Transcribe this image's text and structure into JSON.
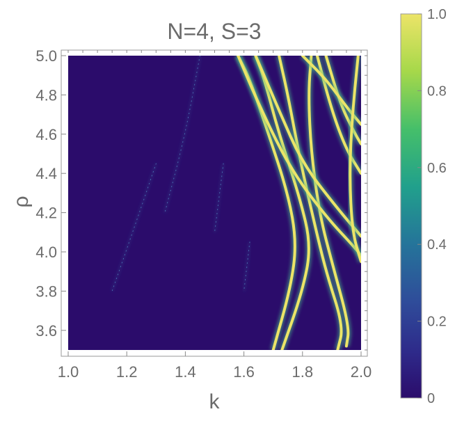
{
  "chart_data": {
    "type": "heatmap",
    "title": "N=4, S=3",
    "xlabel": "k",
    "ylabel": "ρ",
    "xlim": [
      1.0,
      2.0
    ],
    "ylim": [
      3.5,
      5.0
    ],
    "xticks": [
      "1.0",
      "1.2",
      "1.4",
      "1.6",
      "1.8",
      "2.0"
    ],
    "yticks": [
      "3.6",
      "3.8",
      "4.0",
      "4.2",
      "4.4",
      "4.6",
      "4.8",
      "5.0"
    ],
    "colorbar": {
      "range": [
        0,
        1
      ],
      "ticks": [
        "0",
        "0.2",
        "0.4",
        "0.6",
        "0.8",
        "1.0"
      ],
      "colormap": "viridis"
    },
    "background_color": "#2b0c6b",
    "resonance_curves": [
      {
        "points": [
          [
            1.7,
            3.5
          ],
          [
            1.76,
            3.82
          ],
          [
            1.78,
            4.05
          ],
          [
            1.75,
            4.3
          ],
          [
            1.68,
            4.62
          ],
          [
            1.62,
            4.88
          ],
          [
            1.58,
            5.0
          ]
        ],
        "intensity": 1.0
      },
      {
        "points": [
          [
            1.73,
            3.5
          ],
          [
            1.8,
            3.8
          ],
          [
            1.83,
            4.03
          ],
          [
            1.79,
            4.28
          ],
          [
            1.72,
            4.6
          ],
          [
            1.67,
            4.88
          ],
          [
            1.64,
            5.0
          ]
        ],
        "intensity": 1.0
      },
      {
        "points": [
          [
            1.92,
            3.5
          ],
          [
            1.94,
            3.62
          ],
          [
            1.88,
            3.9
          ],
          [
            1.84,
            4.15
          ],
          [
            1.79,
            4.48
          ],
          [
            1.75,
            4.8
          ],
          [
            1.72,
            5.0
          ]
        ],
        "intensity": 0.9
      },
      {
        "points": [
          [
            1.95,
            3.52
          ],
          [
            1.96,
            3.62
          ],
          [
            1.9,
            3.95
          ],
          [
            1.86,
            4.18
          ],
          [
            1.83,
            4.5
          ],
          [
            1.82,
            4.8
          ],
          [
            1.83,
            5.0
          ]
        ],
        "intensity": 0.9
      },
      {
        "points": [
          [
            1.58,
            5.0
          ],
          [
            1.66,
            4.72
          ],
          [
            1.76,
            4.42
          ],
          [
            1.88,
            4.18
          ],
          [
            1.98,
            4.02
          ],
          [
            2.0,
            3.98
          ]
        ],
        "intensity": 1.0
      },
      {
        "points": [
          [
            1.64,
            5.0
          ],
          [
            1.72,
            4.72
          ],
          [
            1.8,
            4.45
          ],
          [
            1.92,
            4.22
          ],
          [
            2.0,
            4.08
          ]
        ],
        "intensity": 1.0
      },
      {
        "points": [
          [
            1.85,
            5.0
          ],
          [
            1.9,
            4.72
          ],
          [
            1.95,
            4.52
          ],
          [
            2.0,
            4.4
          ]
        ],
        "intensity": 0.9
      },
      {
        "points": [
          [
            1.88,
            5.0
          ],
          [
            1.93,
            4.75
          ],
          [
            1.98,
            4.6
          ],
          [
            2.0,
            4.55
          ]
        ],
        "intensity": 0.9
      },
      {
        "points": [
          [
            1.8,
            5.0
          ],
          [
            1.88,
            4.88
          ],
          [
            1.96,
            4.72
          ],
          [
            2.0,
            4.65
          ]
        ],
        "intensity": 0.9
      },
      {
        "points": [
          [
            1.99,
            5.0
          ],
          [
            1.97,
            4.7
          ],
          [
            1.96,
            4.4
          ],
          [
            1.97,
            4.1
          ],
          [
            2.0,
            3.95
          ]
        ],
        "intensity": 0.8
      },
      {
        "points": [
          [
            1.45,
            5.0
          ],
          [
            1.4,
            4.6
          ],
          [
            1.33,
            4.2
          ]
        ],
        "intensity": 0.25
      },
      {
        "points": [
          [
            1.3,
            4.45
          ],
          [
            1.22,
            4.1
          ],
          [
            1.15,
            3.8
          ]
        ],
        "intensity": 0.15
      },
      {
        "points": [
          [
            1.53,
            4.45
          ],
          [
            1.5,
            4.1
          ]
        ],
        "intensity": 0.2
      },
      {
        "points": [
          [
            1.62,
            4.05
          ],
          [
            1.6,
            3.8
          ]
        ],
        "intensity": 0.2
      }
    ]
  }
}
